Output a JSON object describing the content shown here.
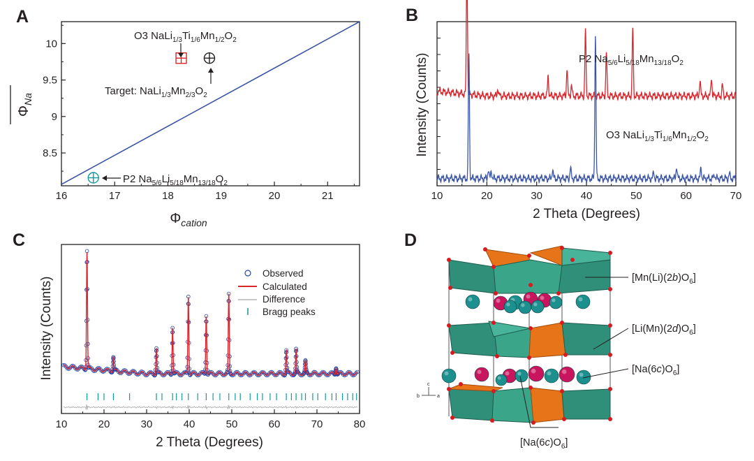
{
  "panels": {
    "a": {
      "letter": "A"
    },
    "b": {
      "letter": "B"
    },
    "c": {
      "letter": "C"
    },
    "d": {
      "letter": "D"
    }
  },
  "colors": {
    "blue_line": "#3b55a4",
    "red_line": "#d9252b",
    "teal": "#13999f",
    "grey": "#b5b5b5",
    "obs_circle": "#2546a8",
    "octa_green": "#2f8f78",
    "octa_orange": "#e8741a",
    "atom_teal": "#1c8f8f",
    "atom_pink": "#c9155e",
    "oxygen_red": "#d71920"
  },
  "panel_a": {
    "xlabel_main": "Φ",
    "xlabel_sub": "cation",
    "ylabel_main": "Φ",
    "ylabel_sub": "Na",
    "overbar": "‾‾‾‾",
    "labels": {
      "o3": "O3 NaLi1/3Ti1/6Mn1/2O2",
      "target": "Target: NaLi1/3Mn2/3O2",
      "p2": "P2 Na5/6Li5/18Mn13/18O2"
    }
  },
  "panel_b": {
    "labels": {
      "p2": "P2 Na5/6Li5/18Mn13/18O2",
      "o3": "O3 NaLi1/3Ti1/6Mn1/2O2"
    }
  },
  "panel_c": {
    "legend": {
      "observed": "Observed",
      "calculated": "Calculated",
      "difference": "Difference",
      "bragg": "Bragg peaks"
    }
  },
  "panel_d": {
    "labels": {
      "top": "[Mn(Li)(2b)O6]",
      "mid": "[Li(Mn)(2d)O6]",
      "na": "[Na(6c)O6]",
      "bottom": "[Na(6c)O6]"
    },
    "axes": {
      "a": "a",
      "b": "b",
      "c": "c"
    }
  },
  "chart_data": [
    {
      "panel": "A",
      "type": "scatter",
      "xlabel": "Φcation",
      "ylabel": "Φ̄Na",
      "xlim": [
        16,
        21.6
      ],
      "ylim": [
        8.05,
        10.3
      ],
      "xticks": [
        16,
        17,
        18,
        19,
        20,
        21
      ],
      "yticks": [
        8.5,
        9,
        9.5,
        10
      ],
      "divider_line": {
        "from": [
          16,
          8.07
        ],
        "to": [
          21.6,
          10.3
        ]
      },
      "points": [
        {
          "name": "O3 NaLi1/3Ti1/6Mn1/2O2",
          "x": 18.25,
          "y": 9.8,
          "marker": "square-plus",
          "color": "#d9252b"
        },
        {
          "name": "Target: NaLi1/3Mn2/3O2",
          "x": 18.78,
          "y": 9.8,
          "marker": "circle-plus",
          "color": "#231f20"
        },
        {
          "name": "P2 Na5/6Li5/18Mn13/18O2",
          "x": 16.6,
          "y": 8.16,
          "marker": "circle-plus",
          "color": "#13999f"
        }
      ]
    },
    {
      "panel": "B",
      "type": "line",
      "xlabel": "2 Theta (Degrees)",
      "ylabel": "Intensity (Counts)",
      "xlim": [
        10,
        70
      ],
      "xticks": [
        10,
        20,
        30,
        40,
        50,
        60,
        70
      ],
      "series": [
        {
          "name": "P2 Na5/6Li5/18Mn13/18O2",
          "color": "#d9252b",
          "baseline": 0.55,
          "peaks": [
            [
              16.0,
              0.85
            ],
            [
              22.2,
              0.05
            ],
            [
              32.3,
              0.13
            ],
            [
              36.1,
              0.18
            ],
            [
              37.0,
              0.07
            ],
            [
              39.8,
              0.42
            ],
            [
              44.0,
              0.28
            ],
            [
              49.3,
              0.43
            ],
            [
              62.8,
              0.1
            ],
            [
              65.1,
              0.12
            ],
            [
              67.3,
              0.07
            ]
          ]
        },
        {
          "name": "O3 NaLi1/3Ti1/6Mn1/2O2",
          "color": "#3b55a4",
          "baseline": 0.02,
          "peaks": [
            [
              16.4,
              0.8
            ],
            [
              20.3,
              0.06
            ],
            [
              20.9,
              0.05
            ],
            [
              33.2,
              0.06
            ],
            [
              36.8,
              0.07
            ],
            [
              41.8,
              0.92
            ],
            [
              53.5,
              0.04
            ],
            [
              58.1,
              0.08
            ],
            [
              63.0,
              0.07
            ],
            [
              65.7,
              0.03
            ],
            [
              68.7,
              0.03
            ]
          ]
        }
      ]
    },
    {
      "panel": "C",
      "type": "line",
      "xlabel": "2 Theta (Degrees)",
      "ylabel": "Intensity (Counts)",
      "xlim": [
        10,
        80
      ],
      "xticks": [
        10,
        20,
        30,
        40,
        50,
        60,
        70,
        80
      ],
      "series_names": [
        "Observed",
        "Calculated",
        "Difference",
        "Bragg peaks"
      ],
      "peaks": [
        [
          16.0,
          1.0
        ],
        [
          22.2,
          0.12
        ],
        [
          32.3,
          0.22
        ],
        [
          36.1,
          0.4
        ],
        [
          39.8,
          0.66
        ],
        [
          44.0,
          0.5
        ],
        [
          49.3,
          0.66
        ],
        [
          62.8,
          0.2
        ],
        [
          65.1,
          0.2
        ],
        [
          67.3,
          0.1
        ],
        [
          74.5,
          0.06
        ]
      ],
      "bragg_positions": [
        16.0,
        18.6,
        20.0,
        22.2,
        26.0,
        32.3,
        33.6,
        36.1,
        37.0,
        38.3,
        39.8,
        42.0,
        44.0,
        45.6,
        47.2,
        49.3,
        50.8,
        52.0,
        54.3,
        56.0,
        57.2,
        59.0,
        60.5,
        62.8,
        64.0,
        65.1,
        66.4,
        67.3,
        69.0,
        70.2,
        72.0,
        73.5,
        74.5,
        76.0,
        77.2,
        78.4,
        79.3
      ]
    }
  ]
}
